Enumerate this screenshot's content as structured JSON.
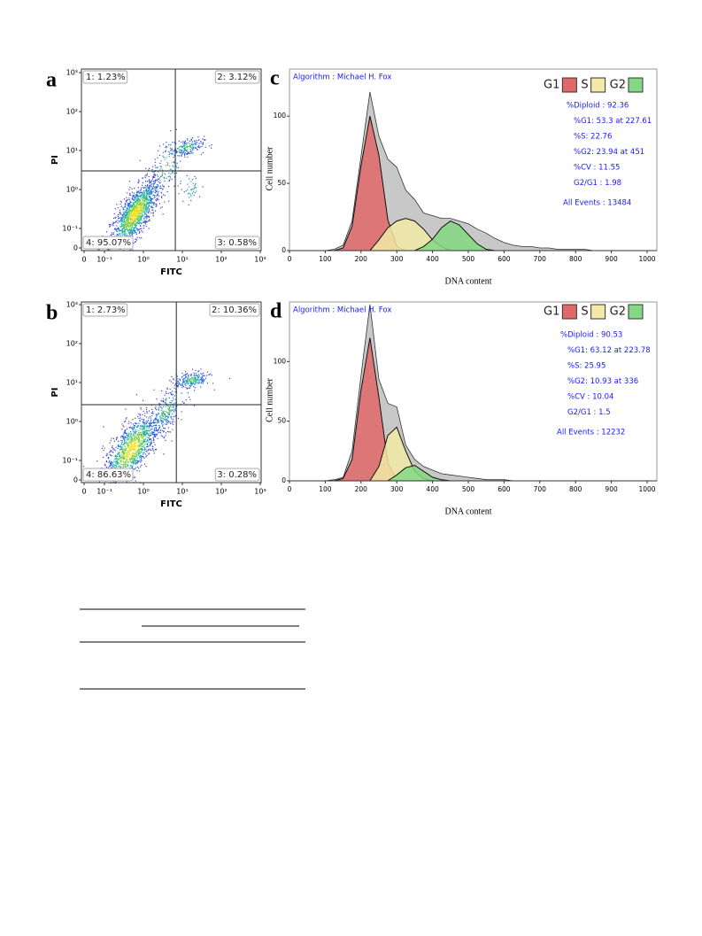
{
  "chart_data": [
    {
      "type": "scatter",
      "panel": "a",
      "xlabel": "FITC",
      "ylabel": "PI",
      "xscale": "biexponential",
      "yscale": "biexponential",
      "xticks": [
        0,
        {
          "value": 0.1,
          "label": "10⁻¹"
        },
        {
          "value": 1,
          "label": "10⁰"
        },
        {
          "value": 10,
          "label": "10¹"
        },
        {
          "value": 100,
          "label": "10²"
        },
        {
          "value": 1000,
          "label": "10³"
        }
      ],
      "yticks": [
        0,
        {
          "value": 0.1,
          "label": "10⁻¹"
        },
        {
          "value": 1,
          "label": "10⁰"
        },
        {
          "value": 10,
          "label": "10¹"
        },
        {
          "value": 100,
          "label": "10²"
        },
        {
          "value": 1000,
          "label": "10³"
        }
      ],
      "gate": {
        "x": 6.6,
        "y": 3.0
      },
      "quadrants": [
        "1: 1.23%",
        "2: 3.12%",
        "3: 0.58%",
        "4: 95.07%"
      ]
    },
    {
      "type": "scatter",
      "panel": "b",
      "xlabel": "FITC",
      "ylabel": "PI",
      "xscale": "biexponential",
      "yscale": "biexponential",
      "xticks": [
        0,
        {
          "value": 0.1,
          "label": "10⁻¹"
        },
        {
          "value": 1,
          "label": "10⁰"
        },
        {
          "value": 10,
          "label": "10¹"
        },
        {
          "value": 100,
          "label": "10²"
        },
        {
          "value": 1000,
          "label": "10³"
        }
      ],
      "yticks": [
        0,
        {
          "value": 0.1,
          "label": "10⁻¹"
        },
        {
          "value": 1,
          "label": "10⁰"
        },
        {
          "value": 10,
          "label": "10¹"
        },
        {
          "value": 100,
          "label": "10²"
        },
        {
          "value": 1000,
          "label": "10³"
        }
      ],
      "gate": {
        "x": 7,
        "y": 2.7
      },
      "quadrants": [
        "1: 2.73%",
        "2: 10.36%",
        "3: 0.28%",
        "4: 86.63%"
      ]
    },
    {
      "type": "area",
      "panel": "c",
      "algorithm": "Algorithm : Michael H. Fox",
      "xlabel": "DNA content",
      "ylabel": "Cell number",
      "x": [
        100,
        125,
        150,
        175,
        200,
        225,
        250,
        275,
        300,
        325,
        350,
        375,
        400,
        425,
        450,
        475,
        500,
        525,
        550,
        575,
        600,
        625,
        650,
        675,
        700,
        725,
        750,
        775,
        800,
        825,
        850,
        875,
        900
      ],
      "values": [
        0,
        1,
        4,
        22,
        70,
        118,
        85,
        68,
        62,
        45,
        38,
        28,
        26,
        24,
        24,
        22,
        20,
        16,
        13,
        9,
        6,
        4,
        3,
        3,
        2,
        2,
        1,
        1,
        1,
        1,
        0,
        0,
        0
      ],
      "color": "#c8c8c8",
      "series": [
        {
          "name": "G1",
          "color": "#e06868",
          "values": [
            0,
            0,
            2,
            18,
            63,
            100,
            71,
            23,
            3,
            0,
            0,
            0,
            0,
            0,
            0,
            0,
            0,
            0,
            0,
            0,
            0,
            0,
            0,
            0,
            0,
            0,
            0,
            0,
            0,
            0,
            0,
            0,
            0
          ]
        },
        {
          "name": "S",
          "color": "#f2eaa6",
          "values": [
            0,
            0,
            0,
            0,
            0,
            0,
            8,
            17,
            22,
            24,
            22,
            16,
            8,
            3,
            0,
            0,
            0,
            0,
            0,
            0,
            0,
            0,
            0,
            0,
            0,
            0,
            0,
            0,
            0,
            0,
            0,
            0,
            0
          ]
        },
        {
          "name": "G2",
          "color": "#84d884",
          "values": [
            0,
            0,
            0,
            0,
            0,
            0,
            0,
            0,
            0,
            0,
            0,
            3,
            8.5,
            17,
            22,
            19,
            12,
            5,
            1,
            0,
            0,
            0,
            0,
            0,
            0,
            0,
            0,
            0,
            0,
            0,
            0,
            0,
            0
          ]
        }
      ],
      "xlim": [
        0,
        1000
      ],
      "xticks": [
        0,
        100,
        200,
        300,
        400,
        500,
        600,
        700,
        800,
        900,
        1000
      ],
      "ylim": [
        0,
        135
      ],
      "yticks": [
        0,
        50,
        100
      ],
      "annotations": [
        "%Diploid : 92.36",
        "%G1: 53.3 at 227.61",
        "%S: 22.76",
        "%G2: 23.94 at 451",
        "%CV : 11.55",
        "G2/G1 : 1.98",
        "All Events : 13484"
      ]
    },
    {
      "type": "area",
      "panel": "d",
      "algorithm": "Algorithm : Michael H. Fox",
      "xlabel": "DNA content",
      "ylabel": "Cell number",
      "x": [
        100,
        125,
        150,
        175,
        200,
        225,
        250,
        275,
        300,
        325,
        350,
        375,
        400,
        425,
        450,
        475,
        500,
        525,
        550,
        575,
        600,
        625,
        650,
        675,
        700,
        725,
        750,
        775,
        800,
        825,
        850,
        875,
        900
      ],
      "values": [
        0,
        1,
        3,
        25,
        88,
        148,
        85,
        65,
        62,
        30,
        18,
        12,
        9,
        6,
        5,
        4,
        3,
        2,
        1,
        1,
        1,
        0,
        0,
        0,
        0,
        0,
        0,
        0,
        0,
        0,
        0,
        0,
        0
      ],
      "color": "#c8c8c8",
      "series": [
        {
          "name": "G1",
          "color": "#e06868",
          "values": [
            0,
            0,
            2,
            18,
            76,
            120,
            70,
            15,
            1,
            0,
            0,
            0,
            0,
            0,
            0,
            0,
            0,
            0,
            0,
            0,
            0,
            0,
            0,
            0,
            0,
            0,
            0,
            0,
            0,
            0,
            0,
            0,
            0
          ]
        },
        {
          "name": "S",
          "color": "#f2eaa6",
          "values": [
            0,
            0,
            0,
            0,
            0,
            0,
            12,
            38,
            45,
            25,
            8,
            2,
            0,
            0,
            0,
            0,
            0,
            0,
            0,
            0,
            0,
            0,
            0,
            0,
            0,
            0,
            0,
            0,
            0,
            0,
            0,
            0,
            0
          ]
        },
        {
          "name": "G2",
          "color": "#84d884",
          "values": [
            0,
            0,
            0,
            0,
            0,
            0,
            0,
            0,
            5,
            11,
            13,
            8,
            3,
            1,
            0,
            0,
            0,
            0,
            0,
            0,
            0,
            0,
            0,
            0,
            0,
            0,
            0,
            0,
            0,
            0,
            0,
            0,
            0
          ]
        }
      ],
      "xlim": [
        0,
        1000
      ],
      "xticks": [
        0,
        100,
        200,
        300,
        400,
        500,
        600,
        700,
        800,
        900,
        1000
      ],
      "ylim": [
        0,
        150
      ],
      "yticks": [
        0,
        50,
        100
      ],
      "annotations": [
        "%Diploid : 90.53",
        "%G1: 63.12 at 223.78",
        "%S: 25.95",
        "%G2: 10.93 at 336",
        "%CV : 10.04",
        "G2/G1 : 1.5",
        "All Events : 12232"
      ]
    }
  ]
}
